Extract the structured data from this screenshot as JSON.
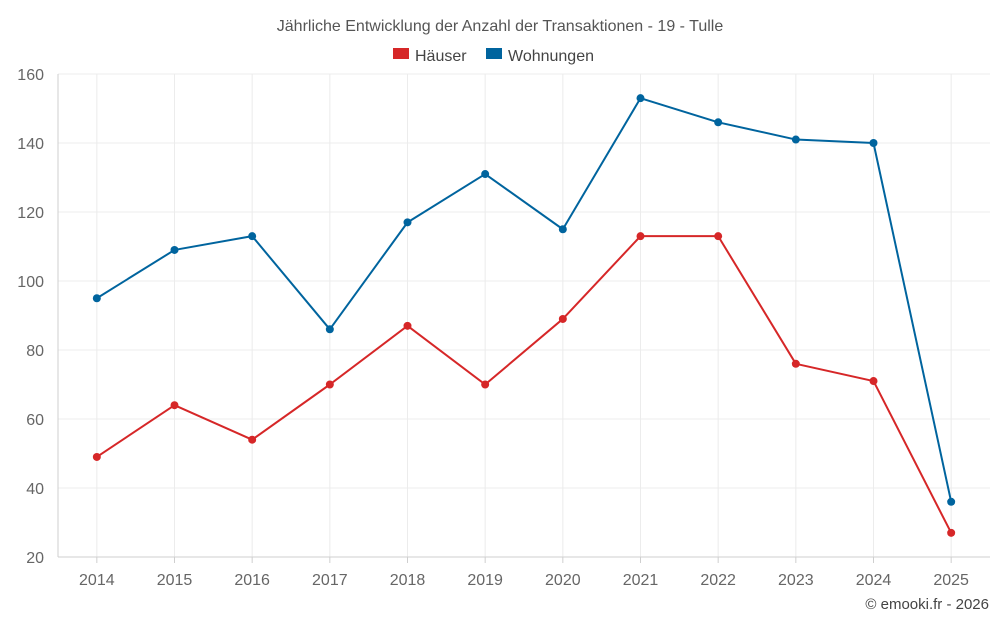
{
  "chart_data": {
    "type": "line",
    "title": "Jährliche Entwicklung der Anzahl der Transaktionen - 19 - Tulle",
    "categories": [
      "2014",
      "2015",
      "2016",
      "2017",
      "2018",
      "2019",
      "2020",
      "2021",
      "2022",
      "2023",
      "2024",
      "2025"
    ],
    "series": [
      {
        "name": "Häuser",
        "color": "#d62728",
        "values": [
          49,
          64,
          54,
          70,
          87,
          70,
          89,
          113,
          113,
          76,
          71,
          27
        ]
      },
      {
        "name": "Wohnungen",
        "color": "#00649e",
        "values": [
          95,
          109,
          113,
          86,
          117,
          131,
          115,
          153,
          146,
          141,
          140,
          36
        ]
      }
    ],
    "ylim": [
      20,
      160
    ],
    "yticks": [
      20,
      40,
      60,
      80,
      100,
      120,
      140,
      160
    ],
    "grid": true,
    "legend": "top-center"
  },
  "credit": "© emooki.fr - 2026"
}
